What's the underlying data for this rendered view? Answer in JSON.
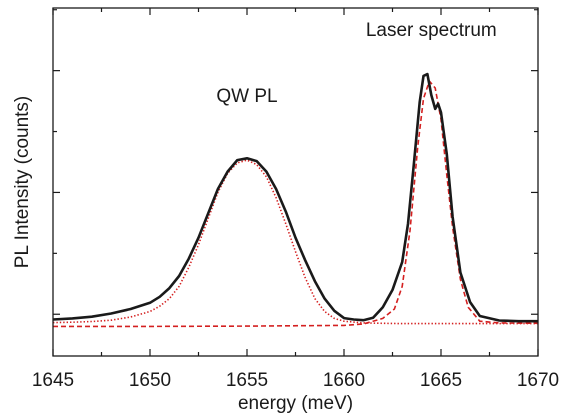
{
  "chart_data": {
    "type": "line",
    "title": "",
    "xlabel": "energy (meV)",
    "ylabel": "PL Intensity (counts)",
    "xlim": [
      1645,
      1670
    ],
    "ylim": [
      0,
      100
    ],
    "x_ticks": [
      1645,
      1650,
      1655,
      1660,
      1665,
      1670
    ],
    "x_tick_labels": [
      "1645",
      "1650",
      "1655",
      "1660",
      "1665",
      "1670"
    ],
    "y_tick_labels_shown": false,
    "grid": false,
    "legend": "none",
    "annotations": [
      {
        "text": "QW PL",
        "x": 1655,
        "y": 73
      },
      {
        "text": "Laser spectrum",
        "x": 1664.5,
        "y": 92
      }
    ],
    "series": [
      {
        "style": "solid",
        "color": "#1a1a1a",
        "x": [
          1645,
          1646,
          1647,
          1648,
          1649,
          1650,
          1650.5,
          1651,
          1651.5,
          1652,
          1652.5,
          1653,
          1653.5,
          1654,
          1654.5,
          1655,
          1655.5,
          1656,
          1656.5,
          1657,
          1657.5,
          1658,
          1658.5,
          1659,
          1659.5,
          1660,
          1660.5,
          1661,
          1661.5,
          1662,
          1662.5,
          1663,
          1663.3,
          1663.6,
          1663.9,
          1664.1,
          1664.3,
          1664.5,
          1664.7,
          1664.85,
          1665,
          1665.3,
          1665.6,
          1666,
          1666.5,
          1667,
          1668,
          1669,
          1670
        ],
        "y": [
          10.5,
          10.8,
          11.3,
          12.2,
          13.5,
          15.3,
          17,
          19.5,
          23,
          28,
          34,
          41,
          48,
          53,
          56.3,
          56.8,
          56,
          53,
          48,
          41.5,
          34,
          27.5,
          21.5,
          16.5,
          13,
          10.9,
          10.5,
          10.3,
          11,
          14,
          19,
          27,
          38,
          55,
          73,
          80.5,
          81,
          75,
          71,
          72.5,
          70,
          58,
          40,
          24,
          15.5,
          11.5,
          10.2,
          10,
          10
        ]
      },
      {
        "style": "dotted",
        "color": "#d42020",
        "x": [
          1645,
          1646,
          1647,
          1648,
          1649,
          1650,
          1650.5,
          1651,
          1651.5,
          1652,
          1652.5,
          1653,
          1653.5,
          1654,
          1654.5,
          1655,
          1655.5,
          1656,
          1656.5,
          1657,
          1657.5,
          1658,
          1658.5,
          1659,
          1659.5,
          1660,
          1661,
          1662,
          1663,
          1664,
          1665,
          1667,
          1670
        ],
        "y": [
          9.6,
          9.7,
          9.9,
          10.3,
          11.2,
          12.8,
          14.3,
          16.5,
          20,
          25.5,
          32,
          39.5,
          47,
          52.5,
          55.5,
          56.3,
          55,
          51.5,
          45.5,
          38,
          30,
          22.5,
          16.5,
          12.8,
          10.8,
          10,
          9.5,
          9.4,
          9.3,
          9.3,
          9.3,
          9.3,
          9.3
        ]
      },
      {
        "style": "dashed",
        "color": "#d42020",
        "x": [
          1645,
          1650,
          1655,
          1660,
          1661,
          1662,
          1662.6,
          1663,
          1663.4,
          1663.8,
          1664.1,
          1664.4,
          1664.7,
          1665,
          1665.3,
          1665.6,
          1666,
          1666.4,
          1667,
          1668,
          1670
        ],
        "y": [
          8.5,
          8.5,
          8.6,
          8.8,
          9.2,
          10.8,
          13.5,
          20,
          36,
          60,
          74,
          79,
          77,
          68,
          52,
          37,
          22,
          14,
          10,
          9.5,
          9.4
        ]
      }
    ]
  }
}
